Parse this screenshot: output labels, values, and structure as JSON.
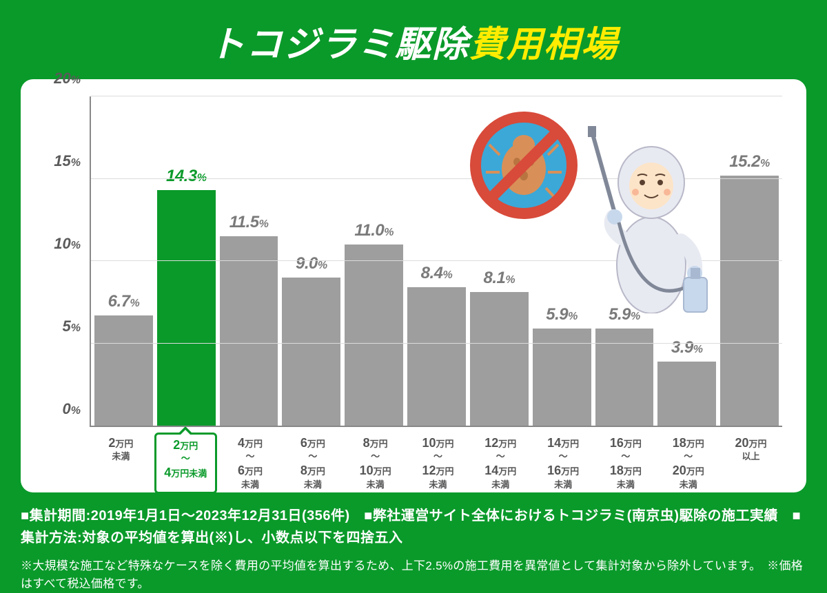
{
  "title": {
    "part1": "トコジラミ駆除",
    "part2": "費用相場",
    "color1": "#ffffff",
    "color2": "#ffec00"
  },
  "chart": {
    "type": "bar",
    "ylim_max": 20,
    "yticks": [
      0,
      5,
      10,
      15,
      20
    ],
    "ytick_suffix": "%",
    "bar_color_default": "#9e9e9e",
    "bar_color_highlight": "#0a9a2a",
    "label_color_default": "#7a7a7a",
    "label_color_highlight": "#0a9a2a",
    "grid_color": "#dcdcdc",
    "axis_color": "#888888",
    "background_color": "#ffffff",
    "bars": [
      {
        "value": 6.7,
        "label_big1": "2",
        "label_unit1": "万円",
        "label_mid": "未満",
        "label_big2": "",
        "label_unit2": "",
        "highlighted": false
      },
      {
        "value": 14.3,
        "label_big1": "2",
        "label_unit1": "万円",
        "label_mid": "〜",
        "label_big2": "4",
        "label_unit2": "万円未満",
        "highlighted": true
      },
      {
        "value": 11.5,
        "label_big1": "4",
        "label_unit1": "万円",
        "label_mid": "〜",
        "label_big2": "6",
        "label_unit2": "万円",
        "label_btm": "未満",
        "highlighted": false
      },
      {
        "value": 9.0,
        "label_big1": "6",
        "label_unit1": "万円",
        "label_mid": "〜",
        "label_big2": "8",
        "label_unit2": "万円",
        "label_btm": "未満",
        "highlighted": false
      },
      {
        "value": 11.0,
        "label_big1": "8",
        "label_unit1": "万円",
        "label_mid": "〜",
        "label_big2": "10",
        "label_unit2": "万円",
        "label_btm": "未満",
        "highlighted": false
      },
      {
        "value": 8.4,
        "label_big1": "10",
        "label_unit1": "万円",
        "label_mid": "〜",
        "label_big2": "12",
        "label_unit2": "万円",
        "label_btm": "未満",
        "highlighted": false
      },
      {
        "value": 8.1,
        "label_big1": "12",
        "label_unit1": "万円",
        "label_mid": "〜",
        "label_big2": "14",
        "label_unit2": "万円",
        "label_btm": "未満",
        "highlighted": false
      },
      {
        "value": 5.9,
        "label_big1": "14",
        "label_unit1": "万円",
        "label_mid": "〜",
        "label_big2": "16",
        "label_unit2": "万円",
        "label_btm": "未満",
        "highlighted": false
      },
      {
        "value": 5.9,
        "label_big1": "16",
        "label_unit1": "万円",
        "label_mid": "〜",
        "label_big2": "18",
        "label_unit2": "万円",
        "label_btm": "未満",
        "highlighted": false
      },
      {
        "value": 3.9,
        "label_big1": "18",
        "label_unit1": "万円",
        "label_mid": "〜",
        "label_big2": "20",
        "label_unit2": "万円",
        "label_btm": "未満",
        "highlighted": false
      },
      {
        "value": 15.2,
        "label_big1": "20",
        "label_unit1": "万円",
        "label_mid": "以上",
        "label_big2": "",
        "label_unit2": "",
        "highlighted": false
      }
    ]
  },
  "illustration": {
    "prohibition_ring": "#d84a3a",
    "prohibition_bg": "#3ba8d8",
    "bug_color": "#d89058",
    "worker_suit": "#e8eaf2",
    "worker_face": "#fce4c8",
    "spray_color": "#c8d8ec"
  },
  "footer": {
    "main": "■集計期間:2019年1月1日〜2023年12月31日(356件)　■弊社運営サイト全体におけるトコジラミ(南京虫)駆除の施工実績　■集計方法:対象の平均値を算出(※)し、小数点以下を四捨五入",
    "note": "※大規模な施工など特殊なケースを除く費用の平均値を算出するため、上下2.5%の施工費用を異常値として集計対象から除外しています。　※価格はすべて税込価格です。"
  }
}
